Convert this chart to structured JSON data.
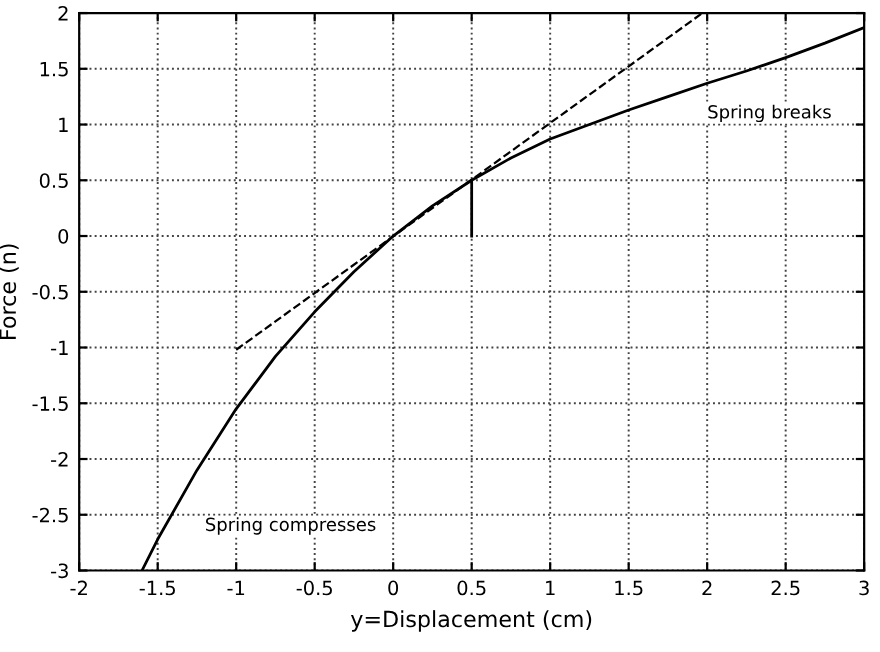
{
  "chart_data": {
    "type": "line",
    "xlabel": "y=Displacement (cm)",
    "ylabel": "Force (n)",
    "series": [
      {
        "color": "#000000",
        "line_style": "solid",
        "x": [
          -1.6,
          -1.5,
          -1.25,
          -1,
          -0.75,
          -0.5,
          -0.25,
          0,
          0.25,
          0.5,
          0.75,
          1,
          1.25,
          1.5,
          1.75,
          2,
          2.25,
          2.5,
          2.75,
          3
        ],
        "values": [
          -3,
          -2.72,
          -2.1,
          -1.55,
          -1.08,
          -0.68,
          -0.32,
          0,
          0.27,
          0.5,
          0.7,
          0.87,
          1.0,
          1.13,
          1.25,
          1.37,
          1.48,
          1.6,
          1.73,
          1.87
        ]
      },
      {
        "color": "#000000",
        "line_style": "dashed",
        "x": [
          -1,
          1.97
        ],
        "values": [
          -1.02,
          2
        ]
      },
      {
        "color": "#000000",
        "line_style": "solid",
        "x": [
          0.5,
          0.5
        ],
        "values": [
          0,
          0.5
        ]
      }
    ],
    "annotations": [
      "Spring breaks",
      "Spring compresses"
    ],
    "xlim": [
      -2,
      3
    ],
    "xticks": [
      -2,
      -1.5,
      -1,
      -0.5,
      0,
      0.5,
      1,
      1.5,
      2,
      2.5,
      3
    ],
    "ylim": [
      -3,
      2
    ],
    "yticks": [
      -3,
      -2.5,
      -2,
      -1.5,
      -1,
      -0.5,
      0,
      0.5,
      1,
      1.5,
      2
    ],
    "grid": true,
    "legend": false
  }
}
